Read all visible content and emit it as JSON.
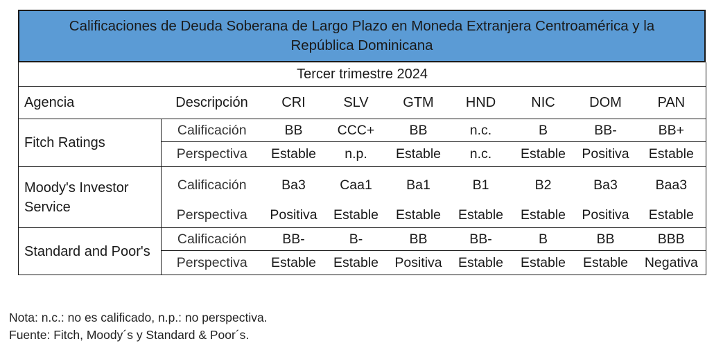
{
  "title": "Calificaciones de Deuda Soberana de Largo Plazo en Moneda Extranjera Centroamérica y la República Dominicana",
  "period": "Tercer trimestre 2024",
  "header": {
    "agency": "Agencia",
    "description": "Descripción",
    "countries": [
      "CRI",
      "SLV",
      "GTM",
      "HND",
      "NIC",
      "DOM",
      "PAN"
    ]
  },
  "agencies": [
    {
      "name": "Fitch Ratings",
      "rows": [
        {
          "desc": "Calificación",
          "values": [
            "BB",
            "CCC+",
            "BB",
            "n.c.",
            "B",
            "BB-",
            "BB+"
          ]
        },
        {
          "desc": "Perspectiva",
          "values": [
            "Estable",
            "n.p.",
            "Estable",
            "n.c.",
            "Estable",
            "Positiva",
            "Estable"
          ]
        }
      ]
    },
    {
      "name": "Moody's Investor Service",
      "rows": [
        {
          "desc": "Calificación",
          "values": [
            "Ba3",
            "Caa1",
            "Ba1",
            "B1",
            "B2",
            "Ba3",
            "Baa3"
          ]
        },
        {
          "desc": "Perspectiva",
          "values": [
            "Positiva",
            "Estable",
            "Estable",
            "Estable",
            "Estable",
            "Positiva",
            "Estable"
          ]
        }
      ]
    },
    {
      "name": "Standard and Poor's",
      "rows": [
        {
          "desc": "Calificación",
          "values": [
            "BB-",
            "B-",
            "BB",
            "BB-",
            "B",
            "BB",
            "BBB"
          ]
        },
        {
          "desc": "Perspectiva",
          "values": [
            "Estable",
            "Estable",
            "Positiva",
            "Estable",
            "Estable",
            "Estable",
            "Negativa"
          ]
        }
      ]
    }
  ],
  "notes": {
    "nota": "Nota: n.c.: no es calificado, n.p.: no perspectiva.",
    "fuente": "Fuente: Fitch, Moody´s y Standard & Poor´s."
  }
}
